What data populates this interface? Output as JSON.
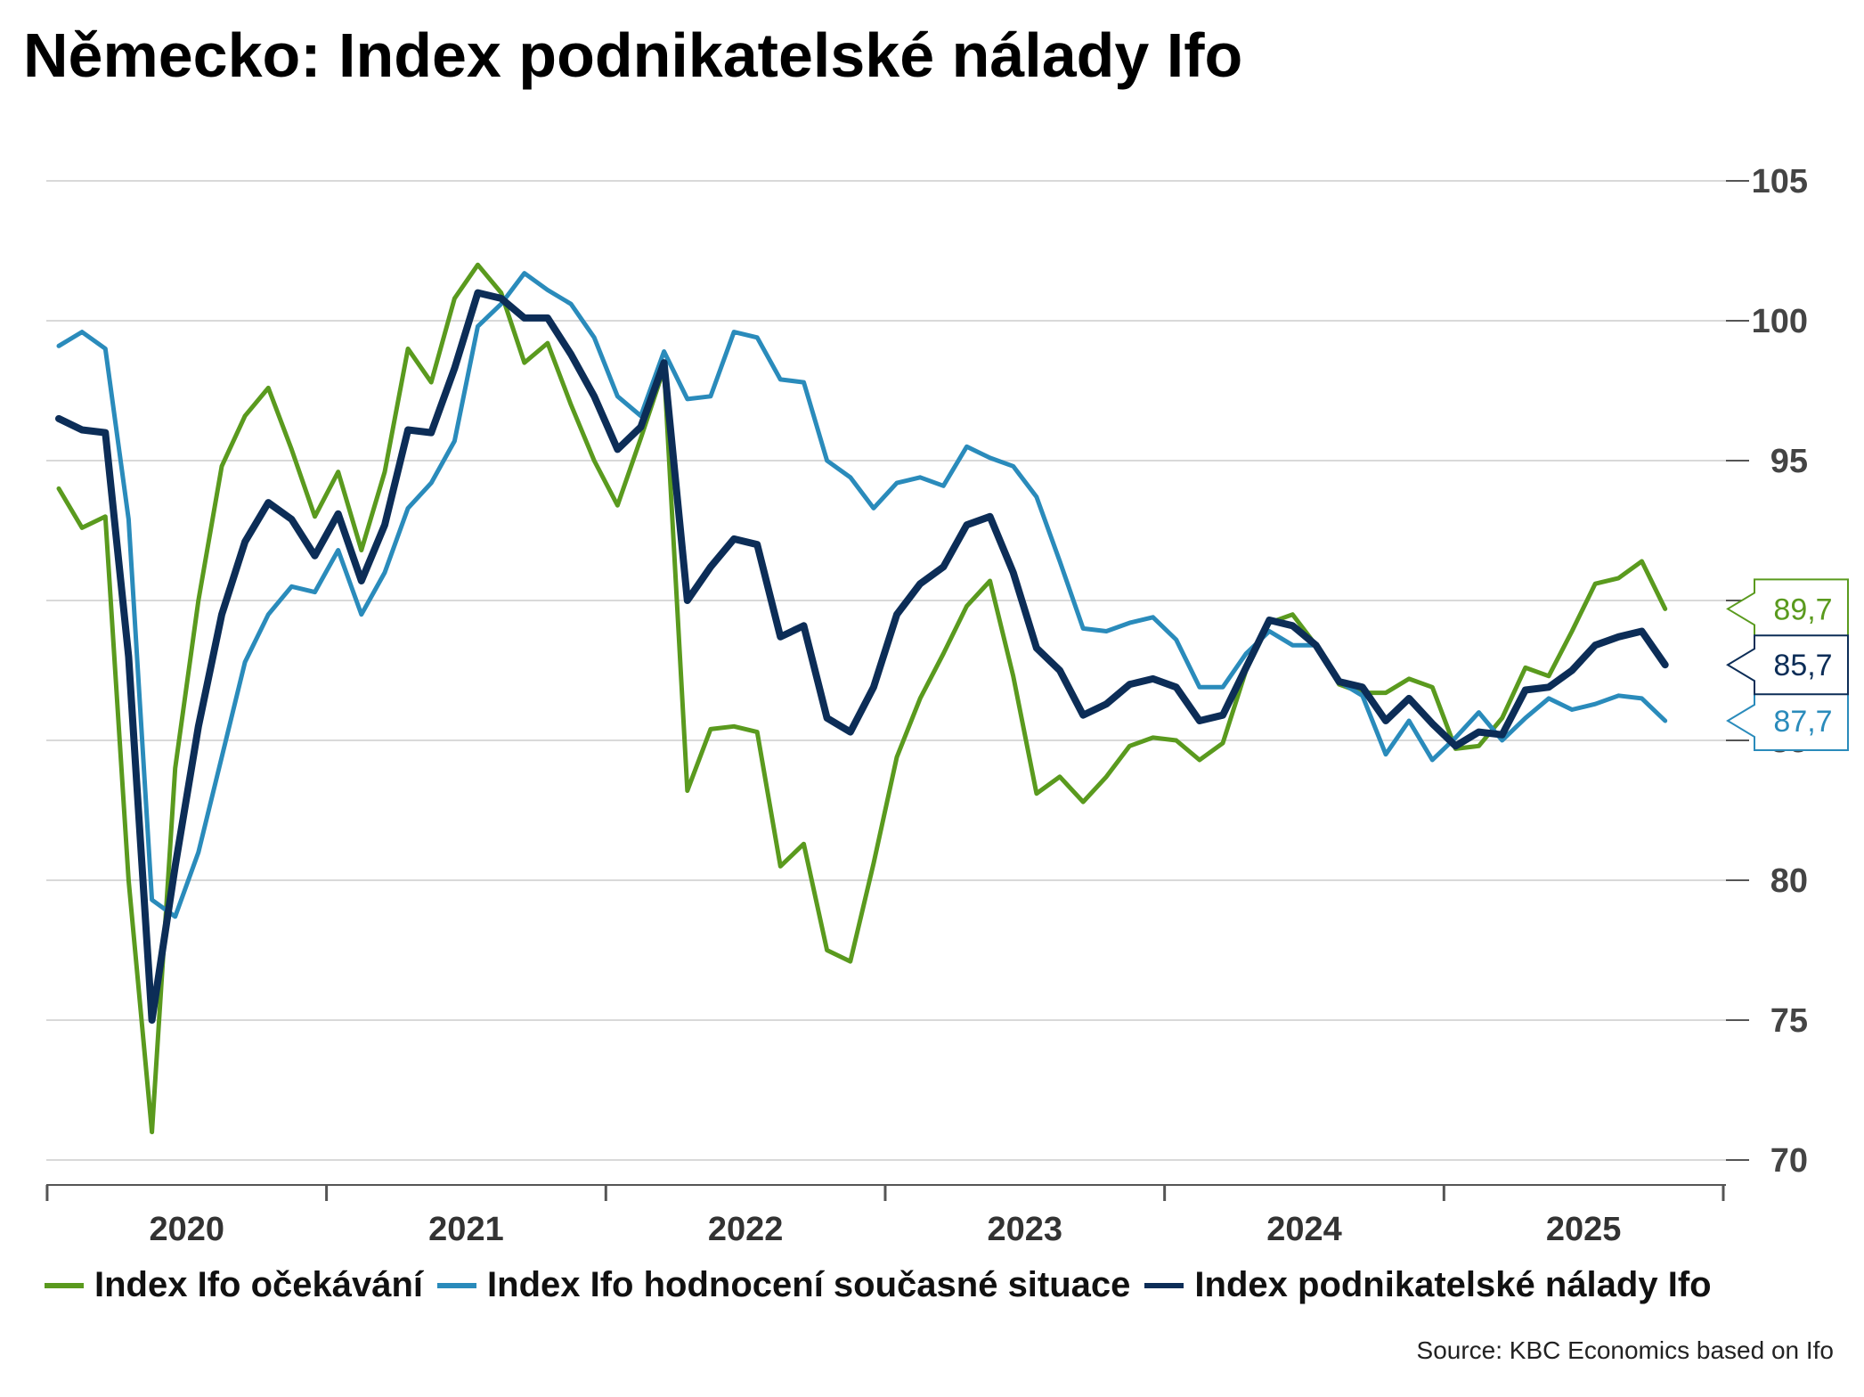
{
  "title": "Německo: Index podnikatelské nálady Ifo",
  "source": "Source: KBC Economics based on Ifo",
  "colors": {
    "expectations": "#5a9a1e",
    "current": "#2a8bbb",
    "climate": "#0c2d57",
    "grid": "#d9d9d9",
    "axis": "#555555"
  },
  "chart_data": {
    "type": "line",
    "title": "Německo: Index podnikatelské nálady Ifo",
    "xlabel": "",
    "ylabel": "",
    "ylim": [
      69,
      105
    ],
    "yticks": [
      70,
      75,
      80,
      85,
      90,
      95,
      100,
      105
    ],
    "y_tick_labels": [
      "70",
      "75",
      "80",
      "85",
      "90",
      "95",
      "100",
      "105"
    ],
    "y_axis_position": "right",
    "grid": true,
    "legend_position": "bottom",
    "x_start": "2020-01",
    "x_end": "2025-12",
    "year_labels": [
      "2020",
      "2021",
      "2022",
      "2023",
      "2024",
      "2025"
    ],
    "end_labels": [
      "89,7",
      "87,7",
      "85,7"
    ],
    "series": [
      {
        "name": "Index Ifo očekávání",
        "color": "#5a9a1e",
        "values": [
          94.0,
          92.6,
          93.0,
          80.0,
          71.0,
          84.0,
          90.0,
          94.8,
          96.6,
          97.6,
          95.4,
          93.0,
          94.6,
          91.8,
          94.6,
          99.0,
          97.8,
          100.8,
          102.0,
          101.0,
          98.5,
          99.2,
          97.0,
          95.0,
          93.4,
          95.8,
          98.3,
          83.2,
          85.4,
          85.5,
          85.3,
          80.5,
          81.3,
          77.5,
          77.1,
          80.6,
          84.4,
          86.5,
          88.1,
          89.8,
          90.7,
          87.3,
          83.1,
          83.7,
          82.8,
          83.7,
          84.8,
          85.1,
          85.0,
          84.3,
          84.9,
          87.5,
          89.2,
          89.5,
          88.4,
          87.0,
          86.7,
          86.7,
          87.2,
          86.9,
          84.7,
          84.8,
          85.8,
          87.6,
          87.3,
          88.9,
          90.6,
          90.8,
          91.4,
          89.7
        ]
      },
      {
        "name": "Index Ifo hodnocení současné situace",
        "color": "#2a8bbb",
        "values": [
          99.1,
          99.6,
          99.0,
          92.9,
          79.3,
          78.7,
          81.0,
          84.4,
          87.8,
          89.5,
          90.5,
          90.3,
          91.8,
          89.5,
          91.0,
          93.3,
          94.2,
          95.7,
          99.8,
          100.6,
          101.7,
          101.1,
          100.6,
          99.4,
          97.3,
          96.6,
          98.9,
          97.2,
          97.3,
          99.6,
          99.4,
          97.9,
          97.8,
          95.0,
          94.4,
          93.3,
          94.2,
          94.4,
          94.1,
          95.5,
          95.1,
          94.8,
          93.7,
          91.4,
          89.0,
          88.9,
          89.2,
          89.4,
          88.6,
          86.9,
          86.9,
          88.1,
          88.9,
          88.4,
          88.4,
          87.1,
          86.6,
          84.5,
          85.7,
          84.3,
          85.1,
          86.0,
          85.0,
          85.8,
          86.5,
          86.1,
          86.3,
          86.6,
          86.5,
          85.7
        ]
      },
      {
        "name": "Index podnikatelské nálady Ifo",
        "color": "#0c2d57",
        "values": [
          96.5,
          96.1,
          96.0,
          88.0,
          75.0,
          80.5,
          85.5,
          89.5,
          92.1,
          93.5,
          92.9,
          91.6,
          93.1,
          90.7,
          92.7,
          96.1,
          96.0,
          98.3,
          101.0,
          100.8,
          100.1,
          100.1,
          98.8,
          97.3,
          95.4,
          96.2,
          98.5,
          90.0,
          91.2,
          92.2,
          92.0,
          88.7,
          89.1,
          85.8,
          85.3,
          86.9,
          89.5,
          90.6,
          91.2,
          92.7,
          93.0,
          91.0,
          88.3,
          87.5,
          85.9,
          86.3,
          87.0,
          87.2,
          86.9,
          85.7,
          85.9,
          87.6,
          89.3,
          89.1,
          88.4,
          87.1,
          86.9,
          85.7,
          86.5,
          85.6,
          84.8,
          85.3,
          85.2,
          86.8,
          86.9,
          87.5,
          88.4,
          88.7,
          88.9,
          87.7
        ]
      }
    ]
  }
}
